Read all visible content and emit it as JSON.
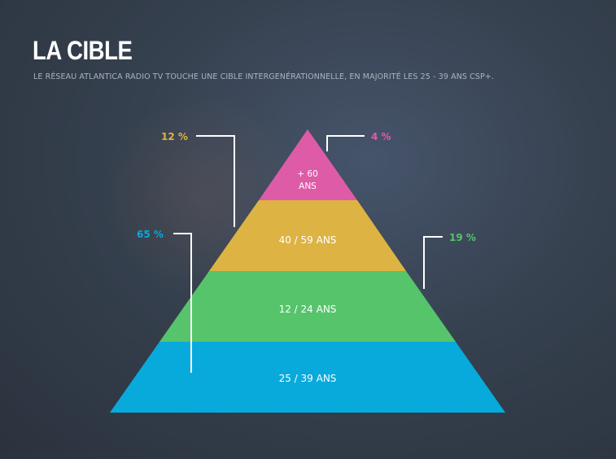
{
  "header": {
    "title": "LA CIBLE",
    "subtitle": "LE RÉSEAU ATLANTICA RADIO TV TOUCHE UNE CIBLE INTERGENÉRATIONNELLE, EN MAJORITÉ LES 25 - 39 ANS CSP+."
  },
  "pyramid": {
    "layers": [
      {
        "label_line1": "+ 60",
        "label_line2": "ANS",
        "percent": "4 %",
        "color": "#de5ba8"
      },
      {
        "label": "40 / 59 ANS",
        "percent": "12 %",
        "color": "#ddb443"
      },
      {
        "label": "12 / 24 ANS",
        "percent": "19 %",
        "color": "#55c46a"
      },
      {
        "label": "25 / 39 ANS",
        "percent": "65 %",
        "color": "#08a9db"
      }
    ]
  }
}
